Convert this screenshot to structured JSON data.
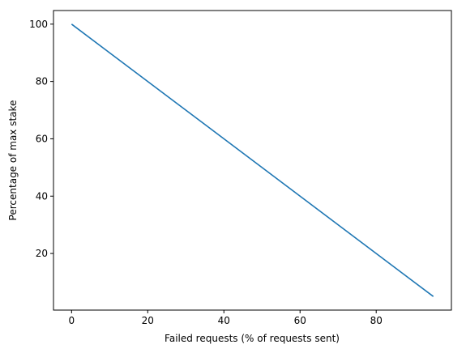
{
  "chart_data": {
    "type": "line",
    "x_label": "Failed requests (% of requests sent)",
    "y_label": "Percentage of max stake",
    "x": [
      0,
      95
    ],
    "series": [
      {
        "color": "#1f77b4",
        "values": [
          100,
          5
        ]
      }
    ],
    "xlim": [
      -4.75,
      99.75
    ],
    "xticks": [
      0,
      20,
      40,
      60,
      80
    ],
    "ylim": [
      0.25,
      104.75
    ],
    "yticks": [
      20,
      40,
      60,
      80,
      100
    ],
    "grid": false
  }
}
